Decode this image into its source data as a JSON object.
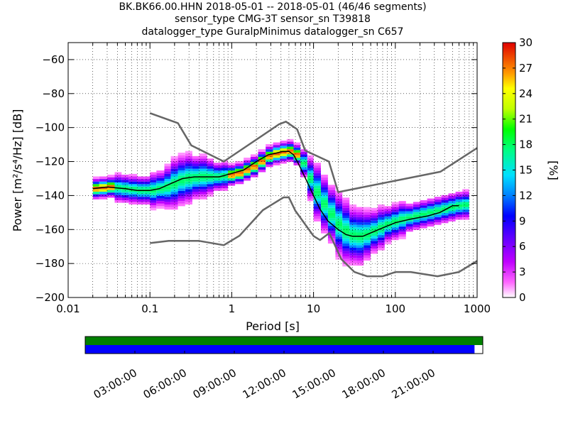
{
  "header": {
    "title_lines": [
      "BK.BK66.00.HHN   2018-05-01 -- 2018-05-01  (46/46 segments)",
      "sensor_type CMG-3T sensor_sn T39818",
      "datalogger_type GuralpMinimus datalogger_sn C657"
    ]
  },
  "chart_data": [
    {
      "type": "heatmap",
      "title": "BK.BK66.00.HHN   2018-05-01 -- 2018-05-01  (46/46 segments)",
      "xlabel": "Period [s]",
      "ylabel": "Power [m²/s⁴/Hz] [dB]",
      "xscale": "log",
      "xlim": [
        0.01,
        1000
      ],
      "ylim": [
        -200,
        -50
      ],
      "x_tick_labels": [
        "0.01",
        "0.1",
        "1",
        "10",
        "100",
        "1000"
      ],
      "x_ticks": [
        0.01,
        0.1,
        1,
        10,
        100,
        1000
      ],
      "y_ticks": [
        -200,
        -180,
        -160,
        -140,
        -120,
        -100,
        -80,
        -60
      ],
      "y_tick_labels": [
        "−200",
        "−180",
        "−160",
        "−140",
        "−120",
        "−100",
        "−80",
        "−60"
      ],
      "grid": true,
      "colorbar": {
        "label": "[%]",
        "range": [
          0,
          30
        ],
        "ticks": [
          "0",
          "3",
          "6",
          "9",
          "12",
          "15",
          "18",
          "21",
          "24",
          "27",
          "30"
        ],
        "colormap": "pqlx"
      },
      "series": [
        {
          "name": "",
          "color": "#666666",
          "role": "high noise model",
          "x": [
            0.1,
            0.22,
            0.32,
            0.8,
            3.8,
            4.6,
            6.3,
            7.9,
            15.4,
            20,
            354.8,
            1000
          ],
          "y": [
            -91.5,
            -97.4,
            -110.5,
            -120,
            -98,
            -96.5,
            -101,
            -113.5,
            -120,
            -138,
            -126,
            -112
          ]
        },
        {
          "name": "",
          "color": "#666666",
          "role": "low noise model",
          "x": [
            0.1,
            0.17,
            0.4,
            0.8,
            1.24,
            2.4,
            4.3,
            5.0,
            6.0,
            10.0,
            12.0,
            15.6,
            21.9,
            31.6,
            45,
            70,
            101,
            154,
            328,
            600,
            1000
          ],
          "y": [
            -168,
            -166.7,
            -166.7,
            -169.2,
            -163.7,
            -148.6,
            -141.1,
            -141.1,
            -149,
            -163.8,
            -166.2,
            -162.1,
            -177.5,
            -185,
            -187.5,
            -187.5,
            -185,
            -185,
            -187.5,
            -185,
            -178.5
          ]
        },
        {
          "name": "",
          "color": "#000000",
          "role": "mode",
          "x": [
            0.02,
            0.03,
            0.05,
            0.07,
            0.1,
            0.13,
            0.18,
            0.25,
            0.35,
            0.5,
            0.7,
            1.0,
            1.4,
            2.0,
            2.8,
            3.5,
            4.2,
            5.0,
            5.7,
            6.5,
            8.0,
            10,
            12,
            15,
            20,
            25,
            30,
            40,
            50,
            70,
            100,
            150,
            250,
            350,
            500,
            600
          ],
          "y": [
            -136,
            -135,
            -136,
            -137,
            -137,
            -136,
            -133,
            -130,
            -129,
            -129,
            -129,
            -127,
            -125,
            -120,
            -116,
            -115,
            -114,
            -114,
            -116,
            -121,
            -130,
            -140,
            -148,
            -155,
            -160,
            -163,
            -164,
            -164,
            -162,
            -159,
            -156,
            -154,
            -152,
            -150,
            -146,
            -146
          ]
        }
      ],
      "density": {
        "x": [
          0.02,
          0.024,
          0.03,
          0.037,
          0.045,
          0.055,
          0.07,
          0.085,
          0.1,
          0.12,
          0.15,
          0.18,
          0.22,
          0.27,
          0.33,
          0.4,
          0.5,
          0.6,
          0.75,
          0.9,
          1.1,
          1.4,
          1.7,
          2.1,
          2.6,
          3.2,
          3.9,
          4.7,
          5.7,
          6.9,
          8.4,
          10,
          12.3,
          15,
          18.5,
          22.5,
          27.5,
          33.5,
          41,
          50,
          61,
          74,
          90,
          110,
          135,
          165,
          200,
          245,
          300,
          365,
          445,
          545,
          660
        ],
        "center": [
          -136,
          -135.5,
          -135,
          -135.5,
          -136,
          -136.5,
          -137,
          -137,
          -137,
          -136,
          -135,
          -133,
          -131,
          -130,
          -129.5,
          -129,
          -129,
          -129,
          -128.5,
          -128,
          -127,
          -125,
          -123,
          -120,
          -117,
          -115.5,
          -114.5,
          -114,
          -116,
          -121,
          -130,
          -138,
          -145,
          -151,
          -157,
          -161,
          -163.5,
          -164,
          -163,
          -161,
          -159,
          -157,
          -155.5,
          -154,
          -153,
          -152,
          -151,
          -150,
          -149,
          -148,
          -147,
          -146,
          -145.5
        ],
        "spread": [
          3,
          3,
          3,
          4,
          4,
          4,
          4,
          4,
          5,
          5,
          6,
          7,
          7,
          7,
          6,
          6,
          5,
          4,
          4,
          3,
          3,
          3,
          3,
          3,
          3,
          3,
          3,
          3,
          3,
          4,
          6,
          8,
          8,
          8,
          9,
          9,
          8,
          8,
          7,
          6,
          6,
          5,
          5,
          5,
          4,
          4,
          4,
          4,
          4,
          4,
          4,
          4,
          4
        ]
      }
    },
    {
      "type": "bar",
      "role": "data availability bars",
      "x_tick_labels": [
        "03:00:00",
        "06:00:00",
        "09:00:00",
        "12:00:00",
        "15:00:00",
        "18:00:00",
        "21:00:00"
      ],
      "x_hours": [
        3,
        6,
        9,
        12,
        15,
        18,
        21
      ],
      "xlim_hours": [
        0,
        24
      ],
      "series": [
        {
          "name": "",
          "color": "#008000",
          "start_hour": 0,
          "end_hour": 24
        },
        {
          "name": "",
          "color": "#0000ff",
          "start_hour": 0,
          "end_hour": 23.5
        }
      ]
    }
  ]
}
